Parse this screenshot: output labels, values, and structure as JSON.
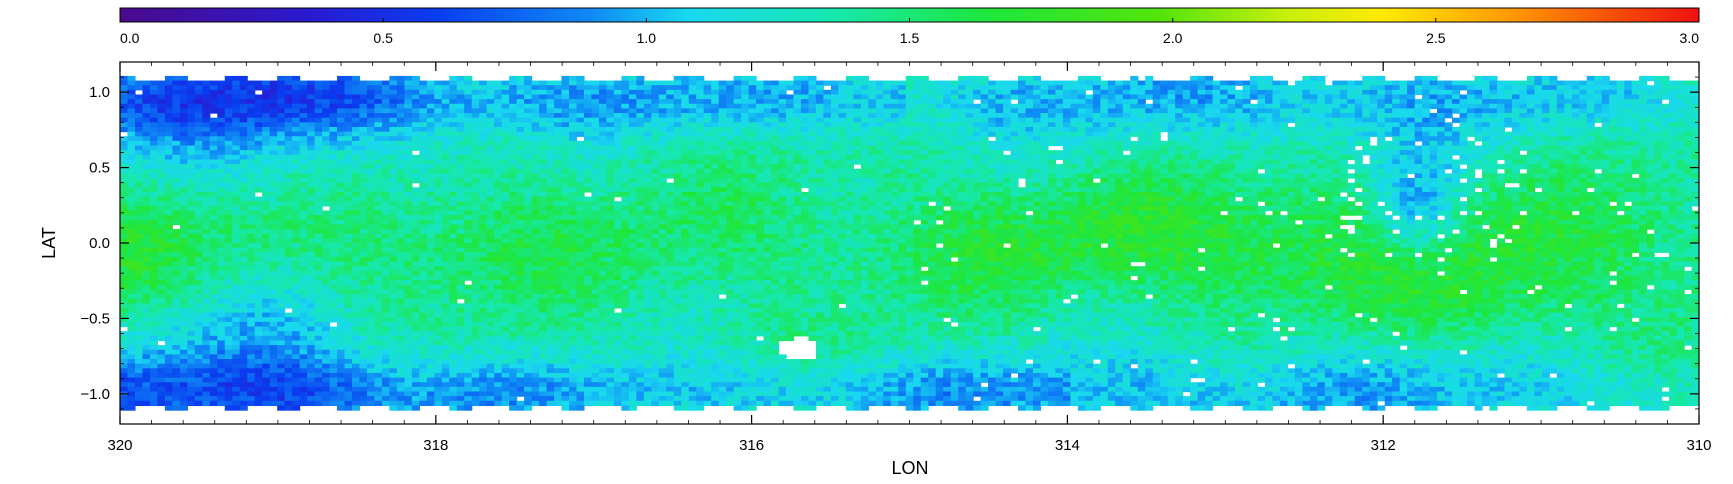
{
  "chart_data": {
    "type": "heatmap",
    "title": "",
    "xlabel": "LON",
    "ylabel": "LAT",
    "xlim": [
      320,
      310
    ],
    "ylim": [
      -1.2,
      1.2
    ],
    "x_ticks": [
      320,
      318,
      316,
      314,
      312,
      310
    ],
    "x_tick_labels": [
      "320",
      "318",
      "316",
      "314",
      "312",
      "310"
    ],
    "y_ticks": [
      1.0,
      0.5,
      0.0,
      -0.5,
      -1.0
    ],
    "y_tick_labels": [
      "1.0",
      "0.5",
      "0.0",
      "−0.5",
      "−1.0"
    ],
    "colorbar": {
      "range": [
        0,
        3.0
      ],
      "ticks": [
        0.0,
        0.5,
        1.0,
        1.5,
        2.0,
        2.5,
        3.0
      ],
      "tick_labels": [
        "0.0",
        "0.5",
        "1.0",
        "1.5",
        "2.0",
        "2.5",
        "3.0"
      ],
      "colormap": "rainbow",
      "colors": [
        "#4b0082",
        "#0000ff",
        "#00bfff",
        "#00ffff",
        "#00ff00",
        "#ffff00",
        "#ff8000",
        "#ff0000"
      ]
    },
    "grid": false,
    "value_regions_description_values": {
      "typical_value": 1.35,
      "low_band_lat_1": 0.55,
      "low_band_lat_minus1": 0.6,
      "high_ridge_lat_0": 1.6
    },
    "masked_regions": [
      {
        "lon": 315.7,
        "lat": -0.7,
        "radius_deg": 0.13
      },
      {
        "lon": 319.4,
        "lat": 0.85,
        "radius_deg": 0.04
      }
    ]
  }
}
